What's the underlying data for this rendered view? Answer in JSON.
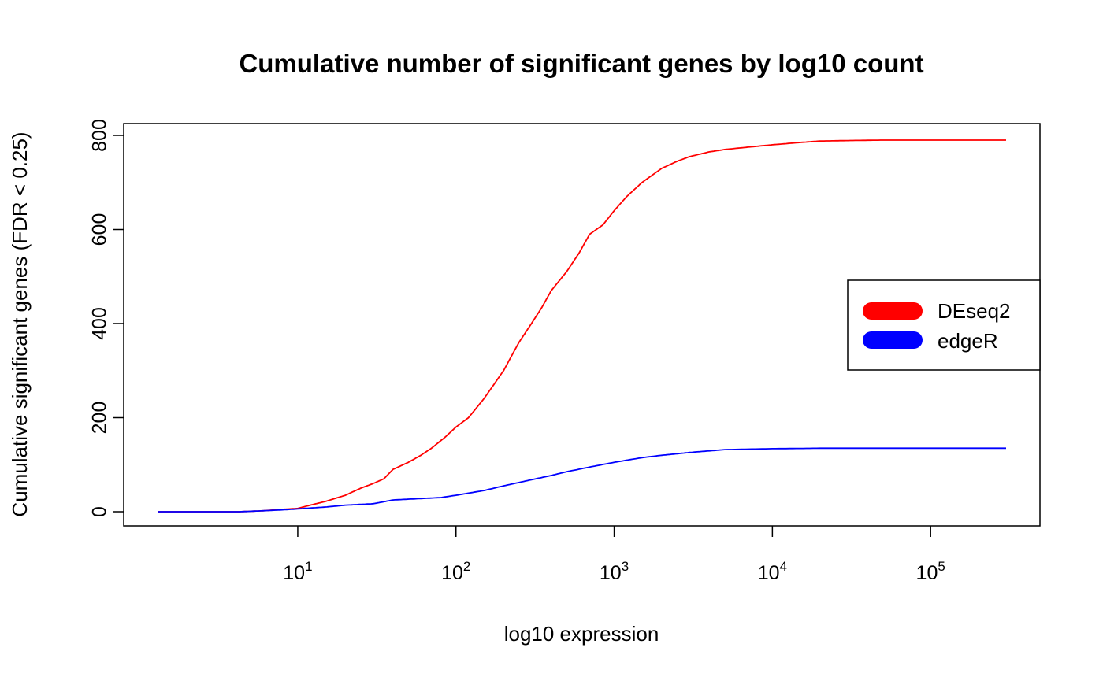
{
  "chart_data": {
    "type": "line",
    "title": "Cumulative number of significant genes by log10 count",
    "xlabel": "log10 expression",
    "ylabel": "Cumulative significant genes (FDR < 0.25)",
    "x_scale": "log10",
    "xlim": [
      1.3,
      300000
    ],
    "ylim": [
      0,
      800
    ],
    "x_ticks": [
      {
        "value": 10,
        "base": "10",
        "exp": "1"
      },
      {
        "value": 100,
        "base": "10",
        "exp": "2"
      },
      {
        "value": 1000,
        "base": "10",
        "exp": "3"
      },
      {
        "value": 10000,
        "base": "10",
        "exp": "4"
      },
      {
        "value": 100000,
        "base": "10",
        "exp": "5"
      }
    ],
    "y_ticks": [
      "0",
      "200",
      "400",
      "600",
      "800"
    ],
    "grid": false,
    "legend_position": "right",
    "series": [
      {
        "name": "DEseq2",
        "color": "#ff0000",
        "points": [
          [
            1.3,
            0
          ],
          [
            4.3,
            0
          ],
          [
            6,
            2
          ],
          [
            8,
            5
          ],
          [
            10,
            7
          ],
          [
            12,
            14
          ],
          [
            15,
            22
          ],
          [
            20,
            35
          ],
          [
            25,
            50
          ],
          [
            30,
            60
          ],
          [
            35,
            70
          ],
          [
            40,
            90
          ],
          [
            50,
            105
          ],
          [
            60,
            120
          ],
          [
            70,
            135
          ],
          [
            85,
            158
          ],
          [
            100,
            180
          ],
          [
            120,
            200
          ],
          [
            150,
            240
          ],
          [
            200,
            300
          ],
          [
            250,
            360
          ],
          [
            300,
            400
          ],
          [
            350,
            435
          ],
          [
            400,
            470
          ],
          [
            500,
            510
          ],
          [
            600,
            550
          ],
          [
            700,
            590
          ],
          [
            850,
            610
          ],
          [
            1000,
            640
          ],
          [
            1200,
            670
          ],
          [
            1500,
            700
          ],
          [
            2000,
            730
          ],
          [
            2500,
            745
          ],
          [
            3000,
            755
          ],
          [
            4000,
            765
          ],
          [
            5000,
            770
          ],
          [
            7000,
            775
          ],
          [
            10000,
            780
          ],
          [
            15000,
            785
          ],
          [
            20000,
            788
          ],
          [
            30000,
            789
          ],
          [
            50000,
            790
          ],
          [
            100000,
            790
          ],
          [
            300000,
            790
          ]
        ]
      },
      {
        "name": "edgeR",
        "color": "#0000ff",
        "points": [
          [
            1.3,
            0
          ],
          [
            4.3,
            0
          ],
          [
            6,
            2
          ],
          [
            8,
            4
          ],
          [
            10,
            6
          ],
          [
            15,
            10
          ],
          [
            20,
            14
          ],
          [
            30,
            17
          ],
          [
            40,
            25
          ],
          [
            60,
            28
          ],
          [
            80,
            30
          ],
          [
            100,
            35
          ],
          [
            150,
            45
          ],
          [
            200,
            55
          ],
          [
            300,
            68
          ],
          [
            400,
            77
          ],
          [
            500,
            85
          ],
          [
            700,
            95
          ],
          [
            1000,
            105
          ],
          [
            1500,
            115
          ],
          [
            2000,
            120
          ],
          [
            3000,
            126
          ],
          [
            5000,
            132
          ],
          [
            10000,
            134
          ],
          [
            20000,
            135
          ],
          [
            100000,
            135
          ],
          [
            300000,
            135
          ]
        ]
      }
    ]
  }
}
